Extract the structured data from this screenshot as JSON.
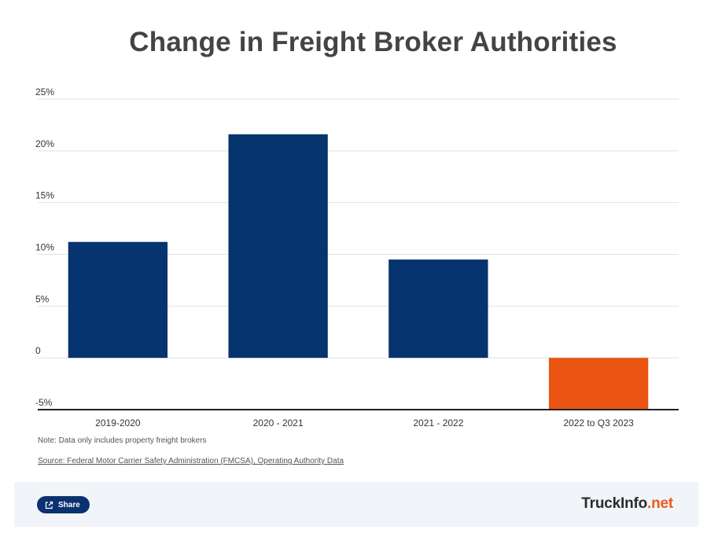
{
  "chart_data": {
    "type": "bar",
    "title": "Change in Freight Broker Authorities",
    "categories": [
      "2019-2020",
      "2020 - 2021",
      "2021 - 2022",
      "2022 to Q3 2023"
    ],
    "values": [
      11.2,
      21.6,
      9.5,
      -5.0
    ],
    "colors": [
      "#06346f",
      "#06346f",
      "#06346f",
      "#ea5412"
    ],
    "ylim": [
      -5,
      25
    ],
    "yticks": [
      25,
      20,
      15,
      10,
      5,
      0,
      -5
    ],
    "ytick_labels": [
      "25%",
      "20%",
      "15%",
      "10%",
      "5%",
      "0",
      "-5%"
    ],
    "xlabel": "",
    "ylabel": "",
    "grid": true
  },
  "note": "Note: Data only includes property freight brokers",
  "source": "Source:  Federal Motor Carrier Safety Administration (FMCSA), Operating Authority Data",
  "share_label": "Share",
  "brand": {
    "part1": "TruckInfo",
    "part2": ".net"
  }
}
